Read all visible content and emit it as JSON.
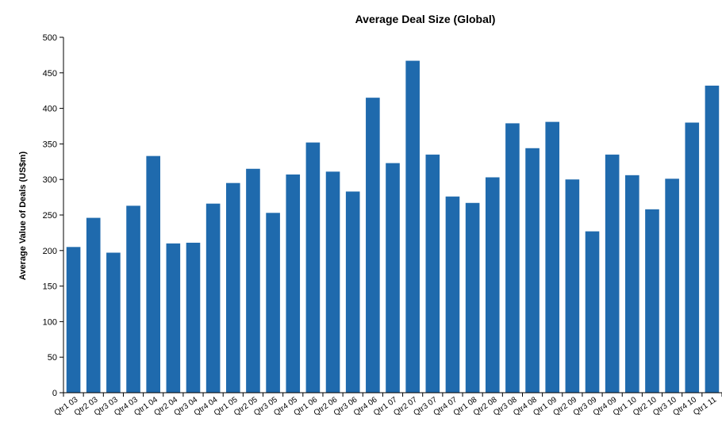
{
  "chart_data": {
    "type": "bar",
    "title": "Average Deal Size (Global)",
    "xlabel": "",
    "ylabel": "Average Value of Deals (US$m)",
    "ylim": [
      0,
      500
    ],
    "yticks": [
      0,
      50,
      100,
      150,
      200,
      250,
      300,
      350,
      400,
      450,
      500
    ],
    "grid": false,
    "bar_color": "#1f6aad",
    "categories": [
      "Qtr1 03",
      "Qtr2 03",
      "Qtr3 03",
      "Qtr4 03",
      "Qtr1 04",
      "Qtr2 04",
      "Qtr3 04",
      "Qtr4 04",
      "Qtr1 05",
      "Qtr2 05",
      "Qtr3 05",
      "Qtr4 05",
      "Qtr1 06",
      "Qtr2 06",
      "Qtr3 06",
      "Qtr4 06",
      "Qtr1 07",
      "Qtr2 07",
      "Qtr3 07",
      "Qtr4 07",
      "Qtr1 08",
      "Qtr2 08",
      "Qtr3 08",
      "Qtr4 08",
      "Qtr1 09",
      "Qtr2 09",
      "Qtr3 09",
      "Qtr4 09",
      "Qtr1 10",
      "Qtr2 10",
      "Qtr3 10",
      "Qtr4 10",
      "Qtr1 11"
    ],
    "values": [
      205,
      246,
      197,
      263,
      333,
      210,
      211,
      266,
      295,
      315,
      253,
      307,
      352,
      311,
      283,
      415,
      323,
      467,
      335,
      276,
      267,
      303,
      379,
      344,
      381,
      300,
      227,
      335,
      306,
      258,
      301,
      380,
      432
    ]
  }
}
